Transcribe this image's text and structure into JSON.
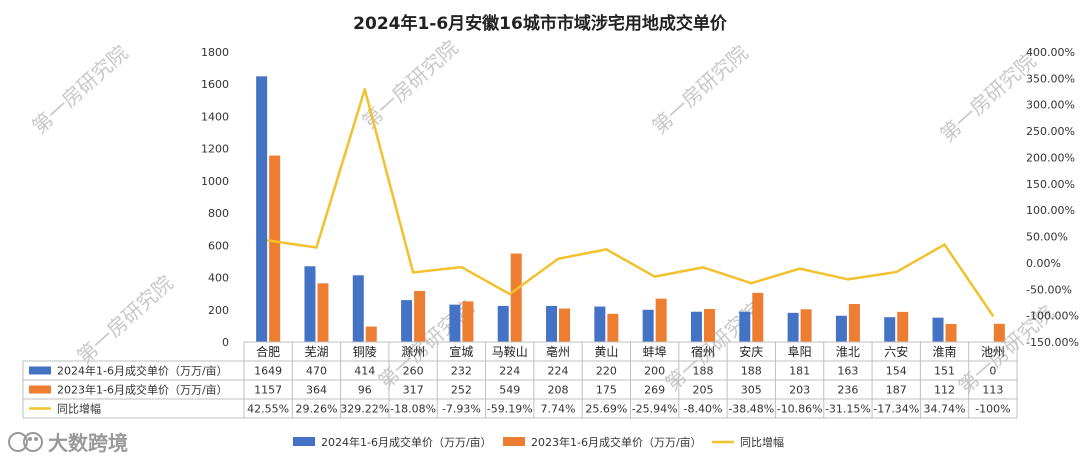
{
  "chart_data": {
    "type": "bar",
    "title": "2024年1-6月安徽16城市市域涉宅用地成交单价",
    "categories": [
      "合肥",
      "芜湖",
      "铜陵",
      "滁州",
      "宣城",
      "马鞍山",
      "亳州",
      "黄山",
      "蚌埠",
      "宿州",
      "安庆",
      "阜阳",
      "淮北",
      "六安",
      "淮南",
      "池州"
    ],
    "series": [
      {
        "name": "2024年1-6月成交单价（万万/亩）",
        "values": [
          1649,
          470,
          414,
          260,
          232,
          224,
          224,
          220,
          200,
          188,
          188,
          181,
          163,
          154,
          151,
          0
        ],
        "color": "#4472C4",
        "axis": "left",
        "kind": "bar"
      },
      {
        "name": "2023年1-6月成交单价（万万/亩）",
        "values": [
          1157,
          364,
          96,
          317,
          252,
          549,
          208,
          175,
          269,
          205,
          305,
          203,
          236,
          187,
          112,
          113
        ],
        "color": "#ED7D31",
        "axis": "left",
        "kind": "bar"
      },
      {
        "name": "同比增幅",
        "values": [
          42.55,
          29.26,
          329.22,
          -18.08,
          -7.93,
          -59.19,
          7.74,
          25.69,
          -25.94,
          -8.4,
          -38.48,
          -10.86,
          -31.15,
          -17.34,
          34.74,
          -100
        ],
        "color": "#F2C12E",
        "axis": "right",
        "kind": "line"
      }
    ],
    "table_values": [
      [
        "1649",
        "470",
        "414",
        "260",
        "232",
        "224",
        "224",
        "220",
        "200",
        "188",
        "188",
        "181",
        "163",
        "154",
        "151",
        "0"
      ],
      [
        "1157",
        "364",
        "96",
        "317",
        "252",
        "549",
        "208",
        "175",
        "269",
        "205",
        "305",
        "203",
        "236",
        "187",
        "112",
        "113"
      ],
      [
        "42.55%",
        "29.26%",
        "329.22%",
        "-18.08%",
        "-7.93%",
        "-59.19%",
        "7.74%",
        "25.69%",
        "-25.94%",
        "-8.40%",
        "-38.48%",
        "-10.86%",
        "-31.15%",
        "-17.34%",
        "34.74%",
        "-100%"
      ]
    ],
    "left_axis": {
      "min": 0,
      "max": 1800,
      "step": 200,
      "ticks": [
        "0",
        "200",
        "400",
        "600",
        "800",
        "1000",
        "1200",
        "1400",
        "1600",
        "1800"
      ]
    },
    "right_axis": {
      "min": -150,
      "max": 400,
      "step": 50,
      "ticks": [
        "-150.00%",
        "-100.00%",
        "-50.00%",
        "0.00%",
        "50.00%",
        "100.00%",
        "150.00%",
        "200.00%",
        "250.00%",
        "300.00%",
        "350.00%",
        "400.00%"
      ]
    },
    "legend_items": [
      "2024年1-6月成交单价（万万/亩）",
      "2023年1-6月成交单价（万万/亩）",
      "同比增幅"
    ],
    "legend_position": "bottom",
    "grid": false
  },
  "watermark": "第一房研究院",
  "logo": {
    "text": "大数跨境"
  }
}
